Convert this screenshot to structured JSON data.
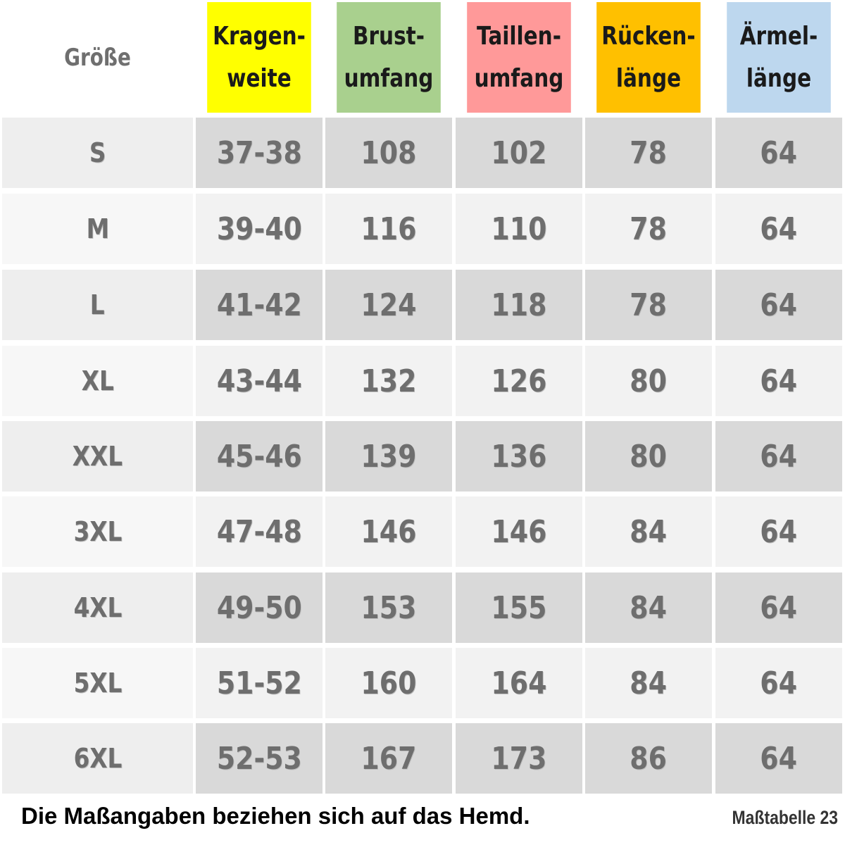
{
  "table": {
    "headers": [
      {
        "key": "groesse",
        "label": "Größe",
        "color": "#ffffff"
      },
      {
        "key": "kragenweite",
        "label": "Kragen-\nweite",
        "color": "#ffff00"
      },
      {
        "key": "brustumfang",
        "label": "Brust-\numfang",
        "color": "#a9d08e"
      },
      {
        "key": "taillenumfang",
        "label": "Taillen-\numfang",
        "color": "#ff9999"
      },
      {
        "key": "rueckenlaenge",
        "label": "Rücken-\nlänge",
        "color": "#ffc000"
      },
      {
        "key": "aermellaenge",
        "label": "Ärmel-\nlänge",
        "color": "#bdd7ee"
      }
    ],
    "rows": [
      {
        "size": "S",
        "values": [
          "37-38",
          "108",
          "102",
          "78",
          "64"
        ]
      },
      {
        "size": "M",
        "values": [
          "39-40",
          "116",
          "110",
          "78",
          "64"
        ]
      },
      {
        "size": "L",
        "values": [
          "41-42",
          "124",
          "118",
          "78",
          "64"
        ]
      },
      {
        "size": "XL",
        "values": [
          "43-44",
          "132",
          "126",
          "80",
          "64"
        ]
      },
      {
        "size": "XXL",
        "values": [
          "45-46",
          "139",
          "136",
          "80",
          "64"
        ]
      },
      {
        "size": "3XL",
        "values": [
          "47-48",
          "146",
          "146",
          "84",
          "64"
        ]
      },
      {
        "size": "4XL",
        "values": [
          "49-50",
          "153",
          "155",
          "84",
          "64"
        ]
      },
      {
        "size": "5XL",
        "values": [
          "51-52",
          "160",
          "164",
          "84",
          "64"
        ]
      },
      {
        "size": "6XL",
        "values": [
          "52-53",
          "167",
          "173",
          "86",
          "64"
        ]
      }
    ]
  },
  "footer": {
    "note": "Die Maßangaben beziehen sich auf das Hemd.",
    "table_id": "Maßtabelle 23"
  }
}
